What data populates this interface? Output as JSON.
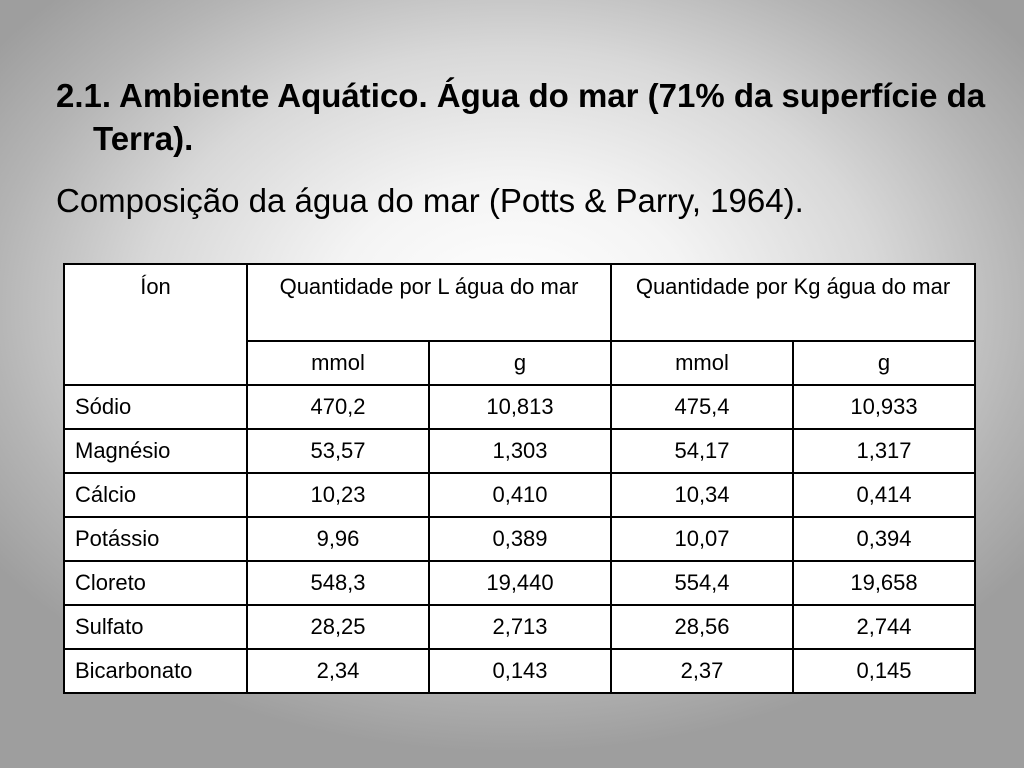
{
  "slide": {
    "heading": "2.1. Ambiente Aquático. Água do mar (71% da superfície da Terra).",
    "subheading": "Composição da água do mar (Potts & Parry, 1964)."
  },
  "table": {
    "ion_header": "Íon",
    "group_headers": [
      "Quantidade por L água do mar",
      "Quantidade por Kg água do mar"
    ],
    "unit_headers": [
      "mmol",
      "g",
      "mmol",
      "g"
    ],
    "rows": [
      {
        "ion": "Sódio",
        "values": [
          "470,2",
          "10,813",
          "475,4",
          "10,933"
        ]
      },
      {
        "ion": "Magnésio",
        "values": [
          "53,57",
          "1,303",
          "54,17",
          "1,317"
        ]
      },
      {
        "ion": "Cálcio",
        "values": [
          "10,23",
          "0,410",
          "10,34",
          "0,414"
        ]
      },
      {
        "ion": "Potássio",
        "values": [
          "9,96",
          "0,389",
          "10,07",
          "0,394"
        ]
      },
      {
        "ion": "Cloreto",
        "values": [
          "548,3",
          "19,440",
          "554,4",
          "19,658"
        ]
      },
      {
        "ion": "Sulfato",
        "values": [
          "28,25",
          "2,713",
          "28,56",
          "2,744"
        ]
      },
      {
        "ion": "Bicarbonato",
        "values": [
          "2,34",
          "0,143",
          "2,37",
          "0,145"
        ]
      }
    ]
  }
}
